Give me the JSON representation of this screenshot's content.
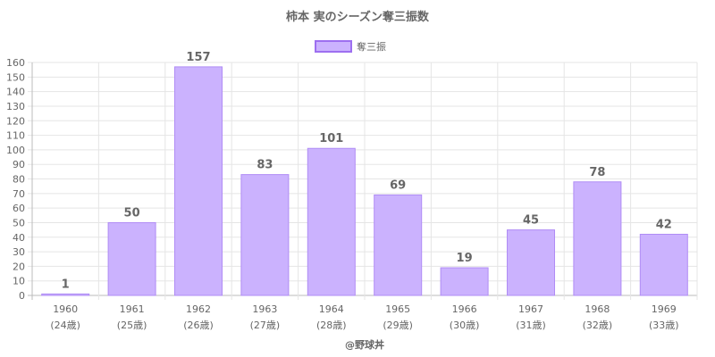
{
  "chart_data": {
    "type": "bar",
    "title": "柿本 実のシーズン奪三振数",
    "series": [
      {
        "name": "奪三振",
        "values": [
          1,
          50,
          157,
          83,
          101,
          69,
          19,
          45,
          78,
          42
        ]
      }
    ],
    "categories": [
      "1960",
      "1961",
      "1962",
      "1963",
      "1964",
      "1965",
      "1966",
      "1967",
      "1968",
      "1969"
    ],
    "ages": [
      "(24歳)",
      "(25歳)",
      "(26歳)",
      "(27歳)",
      "(28歳)",
      "(29歳)",
      "(30歳)",
      "(31歳)",
      "(32歳)",
      "(33歳)"
    ],
    "ylim": [
      0,
      160
    ],
    "ytick_step": 10,
    "grid": true,
    "legend_position": "top",
    "xlabel": "",
    "ylabel": "",
    "colors": {
      "bar_fill": "#cbb2fe",
      "bar_stroke": "#b08cf5",
      "legend_fill": "#cbb2fe",
      "legend_stroke": "#9d6ff0"
    }
  },
  "credit": "@野球丼"
}
